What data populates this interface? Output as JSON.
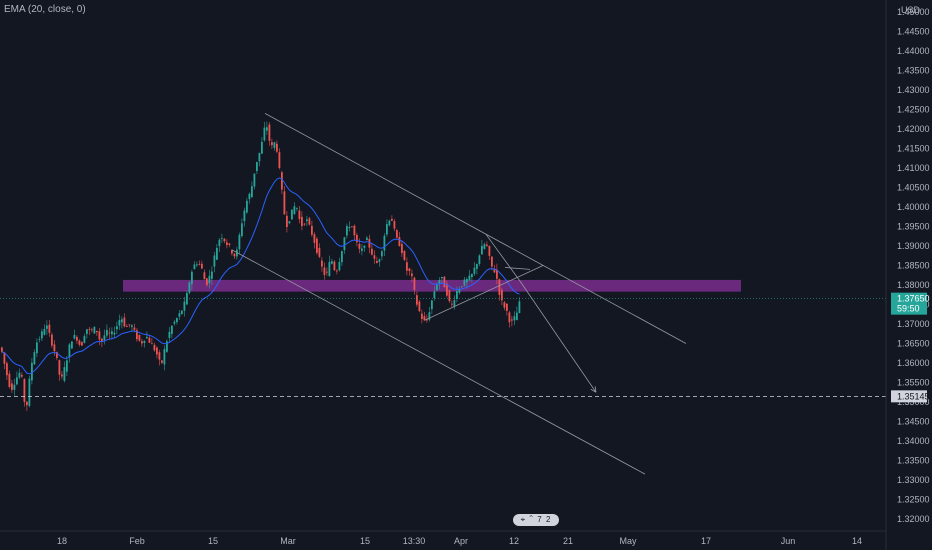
{
  "indicator_label": "EMA (20, close, 0)",
  "currency": "USD",
  "replay_glyphs": "⌖ ⌃ 7 2",
  "colors": {
    "background": "#131722",
    "up_candle": "#26a69a",
    "down_candle": "#ef5350",
    "ema": "#2962ff",
    "zone": "#7b2d8e",
    "trendline": "#9598a1",
    "price_line": "#2a9d8f",
    "dashed_line": "#d1d4dc"
  },
  "chart_data": {
    "type": "candlestick",
    "y_axis_ticks": [
      "1.45000",
      "1.44500",
      "1.44000",
      "1.43500",
      "1.43000",
      "1.42500",
      "1.42000",
      "1.41500",
      "1.41000",
      "1.40500",
      "1.40000",
      "1.39500",
      "1.39000",
      "1.38500",
      "1.38000",
      "1.37500",
      "1.37000",
      "1.36500",
      "1.36000",
      "1.35500",
      "1.35000",
      "1.34500",
      "1.34000",
      "1.33500",
      "1.33000",
      "1.32500",
      "1.32000"
    ],
    "x_axis_ticks": [
      "18",
      "Feb",
      "15",
      "Mar",
      "15",
      "13:30",
      "Apr",
      "12",
      "21",
      "May",
      "17",
      "Jun",
      "14"
    ],
    "ylim": [
      1.3175,
      1.4515
    ],
    "current_price": {
      "value": "1.37650",
      "countdown": "59:50"
    },
    "level_price": {
      "value": "1.35145"
    },
    "demand_zone": {
      "low": 1.3783,
      "high": 1.3813
    },
    "price_path": [
      [
        0,
        1.364
      ],
      [
        5,
        1.358
      ],
      [
        10,
        1.353
      ],
      [
        15,
        1.356
      ],
      [
        20,
        1.358
      ],
      [
        25,
        1.347
      ],
      [
        30,
        1.359
      ],
      [
        35,
        1.365
      ],
      [
        40,
        1.367
      ],
      [
        45,
        1.37
      ],
      [
        50,
        1.366
      ],
      [
        55,
        1.362
      ],
      [
        60,
        1.355
      ],
      [
        65,
        1.36
      ],
      [
        70,
        1.366
      ],
      [
        75,
        1.367
      ],
      [
        80,
        1.364
      ],
      [
        85,
        1.369
      ],
      [
        90,
        1.368
      ],
      [
        95,
        1.369
      ],
      [
        100,
        1.365
      ],
      [
        105,
        1.368
      ],
      [
        110,
        1.367
      ],
      [
        115,
        1.369
      ],
      [
        120,
        1.372
      ],
      [
        125,
        1.369
      ],
      [
        130,
        1.37
      ],
      [
        135,
        1.367
      ],
      [
        140,
        1.365
      ],
      [
        145,
        1.367
      ],
      [
        150,
        1.365
      ],
      [
        155,
        1.363
      ],
      [
        160,
        1.359
      ],
      [
        165,
        1.365
      ],
      [
        170,
        1.369
      ],
      [
        175,
        1.371
      ],
      [
        180,
        1.373
      ],
      [
        185,
        1.376
      ],
      [
        190,
        1.383
      ],
      [
        195,
        1.386
      ],
      [
        200,
        1.385
      ],
      [
        205,
        1.38
      ],
      [
        210,
        1.383
      ],
      [
        215,
        1.389
      ],
      [
        220,
        1.393
      ],
      [
        225,
        1.391
      ],
      [
        230,
        1.389
      ],
      [
        235,
        1.387
      ],
      [
        240,
        1.395
      ],
      [
        245,
        1.401
      ],
      [
        250,
        1.404
      ],
      [
        255,
        1.411
      ],
      [
        260,
        1.415
      ],
      [
        265,
        1.422
      ],
      [
        270,
        1.415
      ],
      [
        275,
        1.417
      ],
      [
        280,
        1.406
      ],
      [
        285,
        1.395
      ],
      [
        290,
        1.398
      ],
      [
        295,
        1.401
      ],
      [
        300,
        1.395
      ],
      [
        305,
        1.397
      ],
      [
        310,
        1.394
      ],
      [
        315,
        1.39
      ],
      [
        320,
        1.385
      ],
      [
        325,
        1.382
      ],
      [
        330,
        1.387
      ],
      [
        335,
        1.383
      ],
      [
        340,
        1.388
      ],
      [
        345,
        1.394
      ],
      [
        350,
        1.396
      ],
      [
        355,
        1.391
      ],
      [
        360,
        1.388
      ],
      [
        365,
        1.392
      ],
      [
        370,
        1.389
      ],
      [
        375,
        1.385
      ],
      [
        380,
        1.388
      ],
      [
        385,
        1.395
      ],
      [
        390,
        1.398
      ],
      [
        395,
        1.392
      ],
      [
        400,
        1.39
      ],
      [
        405,
        1.384
      ],
      [
        410,
        1.383
      ],
      [
        415,
        1.376
      ],
      [
        420,
        1.372
      ],
      [
        425,
        1.37
      ],
      [
        430,
        1.375
      ],
      [
        435,
        1.38
      ],
      [
        440,
        1.382
      ],
      [
        445,
        1.379
      ],
      [
        450,
        1.374
      ],
      [
        455,
        1.378
      ],
      [
        460,
        1.38
      ],
      [
        465,
        1.381
      ],
      [
        470,
        1.382
      ],
      [
        475,
        1.385
      ],
      [
        480,
        1.389
      ],
      [
        485,
        1.391
      ],
      [
        490,
        1.385
      ],
      [
        495,
        1.383
      ],
      [
        500,
        1.376
      ],
      [
        505,
        1.374
      ],
      [
        510,
        1.37
      ],
      [
        515,
        1.372
      ],
      [
        520,
        1.3765
      ]
    ],
    "trendlines": [
      {
        "style": "solid",
        "from": [
          265,
          1.424
        ],
        "to": [
          686,
          1.365
        ]
      },
      {
        "style": "solid",
        "from": [
          232,
          1.389
        ],
        "to": [
          645,
          1.3315
        ]
      },
      {
        "style": "solid",
        "from": [
          425,
          1.371
        ],
        "to": [
          543,
          1.385
        ]
      },
      {
        "style": "solid",
        "from": [
          486,
          1.393
        ],
        "to": [
          520,
          1.381
        ]
      },
      {
        "style": "solid",
        "from": [
          505,
          1.3845
        ],
        "to": [
          530,
          1.384
        ]
      },
      {
        "style": "arrow",
        "from": [
          520,
          1.381
        ],
        "to": [
          596,
          1.3525
        ]
      }
    ]
  }
}
